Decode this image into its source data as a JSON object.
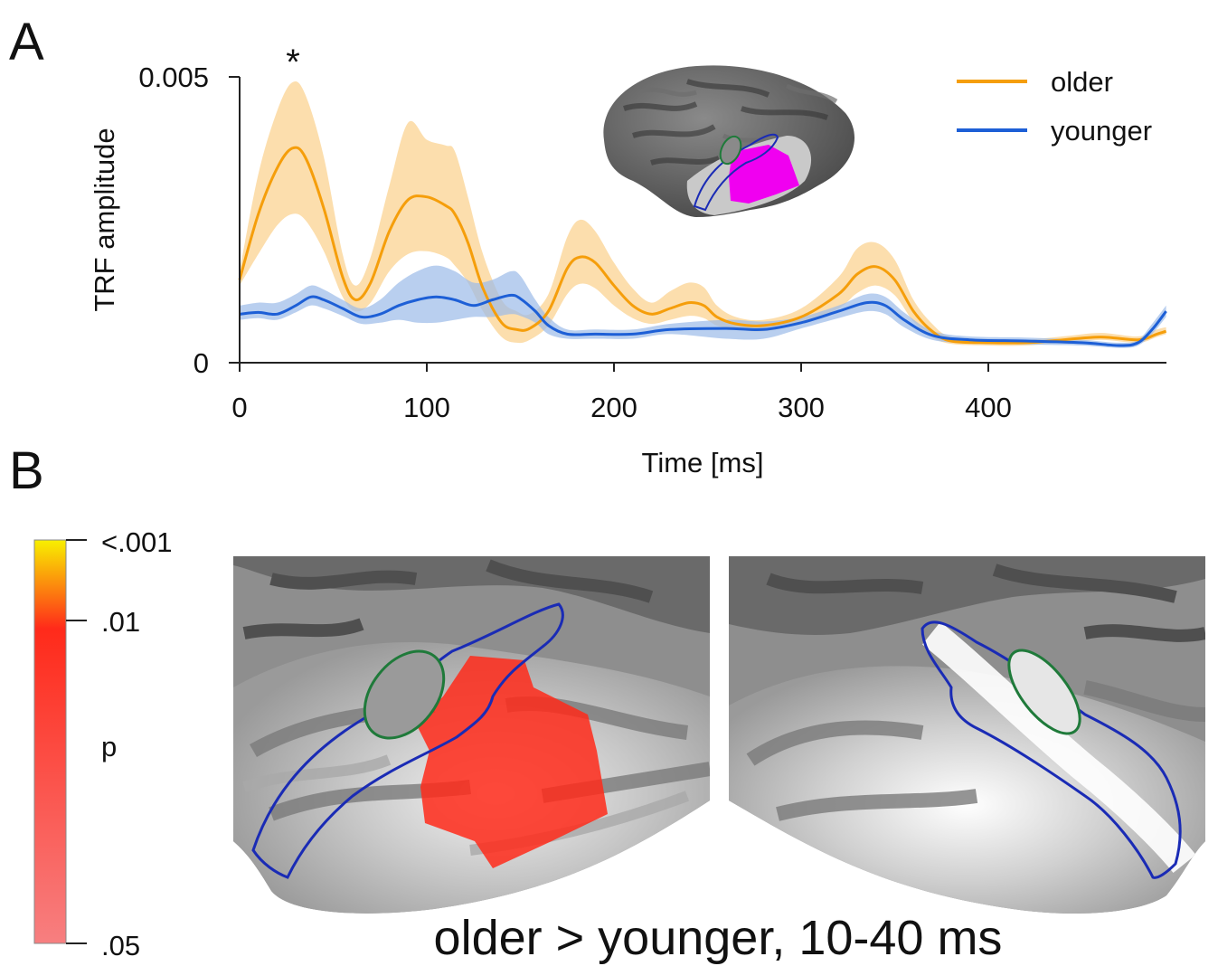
{
  "panel_a": {
    "label": "A",
    "significance_marker": "*"
  },
  "panel_b": {
    "label": "B",
    "caption": "older > younger, 10-40 ms",
    "colorbar": {
      "title": "p",
      "ticks": [
        "<.001",
        ".01",
        ".05"
      ],
      "colors": {
        "top": "#f8f000",
        "mid": "#ff2a1a",
        "bottom": "#f77f80"
      }
    }
  },
  "chart_data": {
    "type": "line",
    "xlabel": "Time [ms]",
    "ylabel": "TRF amplitude",
    "xlim": [
      0,
      495
    ],
    "ylim": [
      0,
      0.005
    ],
    "xticks": [
      0,
      100,
      200,
      300,
      400
    ],
    "yticks": [
      0,
      0.005
    ],
    "ytick_labels": [
      "0",
      "0.005"
    ],
    "legend": {
      "position": "top-right"
    },
    "series": [
      {
        "name": "older",
        "color": "#f59e0b",
        "band_color": "#fbd08a",
        "x": [
          0,
          10,
          20,
          28,
          35,
          45,
          55,
          62,
          70,
          80,
          90,
          100,
          110,
          115,
          122,
          130,
          140,
          148,
          155,
          165,
          175,
          182,
          190,
          200,
          210,
          220,
          230,
          240,
          248,
          255,
          265,
          280,
          300,
          320,
          330,
          340,
          350,
          360,
          370,
          380,
          400,
          420,
          440,
          460,
          480,
          490,
          495
        ],
        "y": [
          0.00145,
          0.0026,
          0.0034,
          0.00375,
          0.0036,
          0.0027,
          0.0015,
          0.0011,
          0.0014,
          0.0023,
          0.00285,
          0.0029,
          0.00275,
          0.0026,
          0.0021,
          0.0013,
          0.0007,
          0.00058,
          0.0006,
          0.0009,
          0.00165,
          0.00185,
          0.00175,
          0.00135,
          0.001,
          0.00085,
          0.00095,
          0.00105,
          0.001,
          0.0008,
          0.00068,
          0.00065,
          0.0008,
          0.0012,
          0.00155,
          0.00168,
          0.00145,
          0.0009,
          0.00055,
          0.00038,
          0.00035,
          0.00035,
          0.0004,
          0.00045,
          0.0004,
          0.0005,
          0.00055
        ],
        "lower": [
          0.00135,
          0.0019,
          0.0024,
          0.0026,
          0.0025,
          0.00195,
          0.00115,
          0.0009,
          0.00105,
          0.0016,
          0.0019,
          0.00195,
          0.00185,
          0.0017,
          0.0014,
          0.0009,
          0.00045,
          0.00035,
          0.0004,
          0.00065,
          0.0012,
          0.00138,
          0.0013,
          0.001,
          0.00078,
          0.00068,
          0.00075,
          0.00082,
          0.00078,
          0.00065,
          0.00058,
          0.00055,
          0.00068,
          0.00095,
          0.00122,
          0.00135,
          0.00118,
          0.00072,
          0.00045,
          0.00033,
          0.0003,
          0.0003,
          0.00035,
          0.0004,
          0.00035,
          0.00045,
          0.0005
        ],
        "upper": [
          0.0016,
          0.0033,
          0.0044,
          0.0049,
          0.0047,
          0.0036,
          0.0019,
          0.00135,
          0.00185,
          0.0031,
          0.0042,
          0.0039,
          0.0038,
          0.0037,
          0.0029,
          0.0019,
          0.0011,
          0.0009,
          0.00085,
          0.0012,
          0.0022,
          0.0025,
          0.0023,
          0.00175,
          0.0013,
          0.00105,
          0.00125,
          0.0014,
          0.00132,
          0.001,
          0.0008,
          0.00075,
          0.00095,
          0.0015,
          0.002,
          0.0021,
          0.0018,
          0.0011,
          0.00068,
          0.00045,
          0.0004,
          0.0004,
          0.00046,
          0.00052,
          0.00046,
          0.00058,
          0.00062
        ]
      },
      {
        "name": "younger",
        "color": "#1d5fd6",
        "band_color": "#9bbbe8",
        "x": [
          0,
          10,
          20,
          30,
          38,
          45,
          55,
          65,
          75,
          85,
          95,
          105,
          115,
          125,
          135,
          145,
          150,
          158,
          165,
          175,
          190,
          210,
          230,
          260,
          280,
          300,
          320,
          335,
          345,
          355,
          370,
          390,
          420,
          450,
          470,
          480,
          488,
          495
        ],
        "y": [
          0.00085,
          0.00088,
          0.00085,
          0.001,
          0.00115,
          0.0011,
          0.00095,
          0.0008,
          0.00085,
          0.001,
          0.0011,
          0.00115,
          0.0011,
          0.001,
          0.0011,
          0.00118,
          0.00112,
          0.0009,
          0.00065,
          0.0005,
          0.0005,
          0.0005,
          0.00058,
          0.0006,
          0.00058,
          0.0007,
          0.0009,
          0.00105,
          0.001,
          0.00075,
          0.00048,
          0.0004,
          0.00038,
          0.00035,
          0.0003,
          0.00035,
          0.0006,
          0.0009
        ],
        "lower": [
          0.00075,
          0.00078,
          0.00075,
          0.00088,
          0.001,
          0.00095,
          0.00082,
          0.00068,
          0.0007,
          0.00075,
          0.0007,
          0.0007,
          0.00075,
          0.0008,
          0.0008,
          0.00085,
          0.00082,
          0.0007,
          0.0005,
          0.00042,
          0.00042,
          0.00042,
          0.0005,
          0.00042,
          0.00042,
          0.0006,
          0.00078,
          0.0009,
          0.00085,
          0.00062,
          0.0004,
          0.00034,
          0.00032,
          0.0003,
          0.00026,
          0.0003,
          0.00052,
          0.0008
        ],
        "upper": [
          0.001,
          0.00105,
          0.00105,
          0.0012,
          0.00135,
          0.00128,
          0.0011,
          0.00095,
          0.0011,
          0.0014,
          0.0016,
          0.0017,
          0.0016,
          0.0014,
          0.00145,
          0.0016,
          0.00152,
          0.0011,
          0.0008,
          0.00058,
          0.00058,
          0.00058,
          0.00068,
          0.00075,
          0.00072,
          0.0008,
          0.001,
          0.0012,
          0.00115,
          0.00088,
          0.00056,
          0.00046,
          0.00044,
          0.0004,
          0.00035,
          0.0004,
          0.0007,
          0.001
        ]
      }
    ]
  }
}
